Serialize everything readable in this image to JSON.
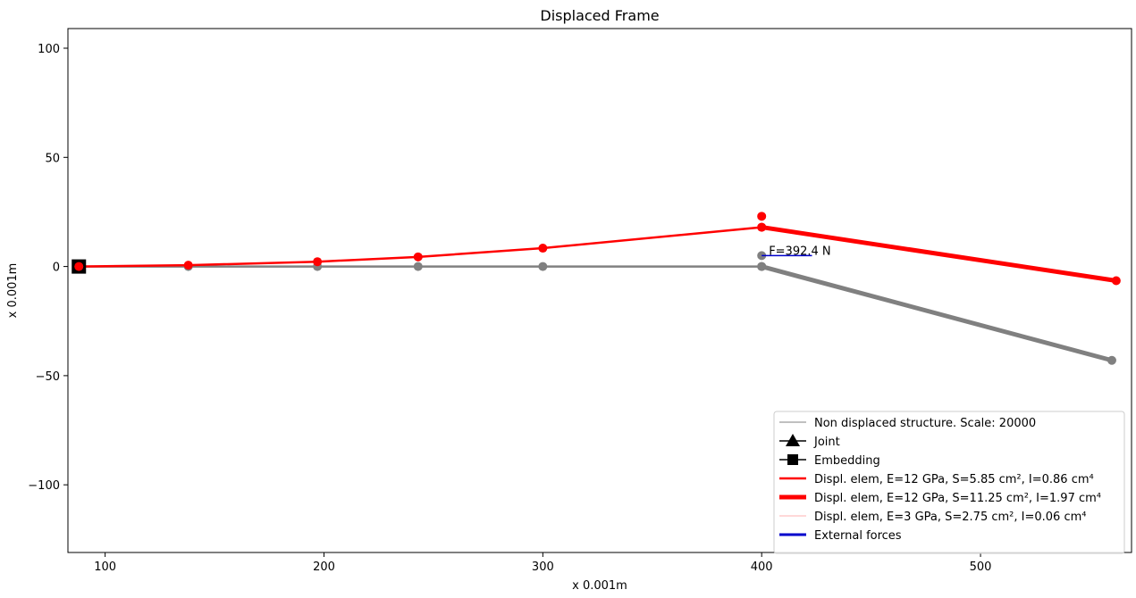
{
  "chart_data": {
    "type": "line",
    "title": "Displaced Frame",
    "xlabel": "x 0.001m",
    "ylabel": "x 0.001m",
    "xlim": [
      83,
      569
    ],
    "ylim": [
      -131,
      109
    ],
    "xticks": [
      100,
      200,
      300,
      400,
      500
    ],
    "xtick_labels": [
      "100",
      "200",
      "300",
      "400",
      "500"
    ],
    "yticks": [
      100,
      50,
      0,
      -50,
      -100
    ],
    "ytick_labels": [
      "100",
      "50",
      "0",
      "−50",
      "−100"
    ],
    "grid": false,
    "legend_position": "lower-right",
    "series": [
      {
        "name": "Non displaced structure. Scale: 20000",
        "color": "#808080",
        "segments": [
          {
            "x": [
              88,
              138,
              197,
              243,
              300,
              400
            ],
            "y": [
              0,
              0,
              0,
              0,
              0,
              0
            ],
            "weight": "normal"
          },
          {
            "x": [
              400,
              560
            ],
            "y": [
              0,
              -43
            ],
            "weight": "thick"
          }
        ]
      },
      {
        "name": "Displ. elem, E=12 GPa, S=5.85 cm², I=0.86 cm⁴",
        "color": "#ff0000",
        "segments": [
          {
            "x": [
              88,
              138,
              197,
              243,
              300,
              400
            ],
            "y": [
              0,
              0.6,
              2.2,
              4.4,
              8.4,
              18
            ],
            "weight": "normal"
          }
        ]
      },
      {
        "name": "Displ. elem, E=12 GPa, S=11.25 cm², I=1.97 cm⁴",
        "color": "#ff0000",
        "segments": [
          {
            "x": [
              400,
              562
            ],
            "y": [
              18,
              -6.5
            ],
            "weight": "thick"
          }
        ]
      },
      {
        "name": "Displ. elem, E=3 GPa, S=2.75 cm², I=0.06 cm⁴",
        "color": "#ffcccc",
        "segments": []
      }
    ],
    "extra_points": [
      {
        "x": 400,
        "y": 23,
        "color": "#ff0000"
      },
      {
        "x": 400,
        "y": 5,
        "color": "#808080"
      }
    ],
    "joints": [],
    "embeddings": [
      {
        "x": 88,
        "y": 0
      }
    ],
    "forces": [
      {
        "x": 400,
        "y": 5,
        "dx": 23,
        "dy": 0,
        "label": "F=392.4 N",
        "color": "#0000cc"
      }
    ],
    "legend": [
      {
        "label": "Non displaced structure. Scale: 20000",
        "kind": "line",
        "color": "#808080",
        "width": 1
      },
      {
        "label": "Joint",
        "kind": "marker-triangle",
        "color": "#000000",
        "width": 1.5
      },
      {
        "label": "Embedding",
        "kind": "marker-square",
        "color": "#000000",
        "width": 1.5
      },
      {
        "label": "Displ. elem, E=12 GPa, S=5.85 cm², I=0.86 cm⁴",
        "kind": "line",
        "color": "#ff0000",
        "width": 2.5
      },
      {
        "label": "Displ. elem, E=12 GPa, S=11.25 cm², I=1.97 cm⁴",
        "kind": "line",
        "color": "#ff0000",
        "width": 5
      },
      {
        "label": "Displ. elem, E=3 GPa, S=2.75 cm², I=0.06 cm⁴",
        "kind": "line",
        "color": "#ffcccc",
        "width": 1.5
      },
      {
        "label": "External forces",
        "kind": "line",
        "color": "#0000cc",
        "width": 3
      }
    ]
  }
}
